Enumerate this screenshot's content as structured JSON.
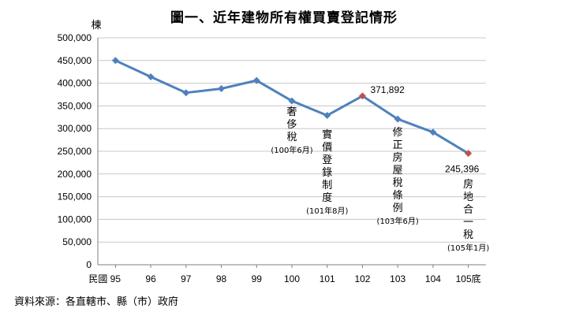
{
  "chart_data": {
    "type": "line",
    "title": "圖一、近年建物所有權買賣登記情形",
    "ylabel": "棟",
    "xlabel_prefix": "民國",
    "ylim": [
      0,
      500000
    ],
    "ytick_values": [
      0,
      50000,
      100000,
      150000,
      200000,
      250000,
      300000,
      350000,
      400000,
      450000,
      500000
    ],
    "ytick_labels": [
      "0",
      "50,000",
      "100,000",
      "150,000",
      "200,000",
      "250,000",
      "300,000",
      "350,000",
      "400,000",
      "450,000",
      "500,000"
    ],
    "categories": [
      "95",
      "96",
      "97",
      "98",
      "99",
      "100",
      "101",
      "102",
      "103",
      "104",
      "105底"
    ],
    "values": [
      450000,
      414000,
      379000,
      388000,
      406000,
      361000,
      329000,
      371892,
      321000,
      292000,
      245396
    ],
    "line_color": "#4F81BD",
    "highlight_color": "#C0504D",
    "highlight_indices": [
      7,
      10
    ],
    "data_labels": [
      {
        "index": 7,
        "text": "371,892"
      },
      {
        "index": 10,
        "text": "245,396"
      }
    ],
    "annotations": [
      {
        "index": 5,
        "text": "奢侈稅",
        "date": "(100年6月)"
      },
      {
        "index": 6,
        "text": "實價登錄制度",
        "date": "(101年8月)"
      },
      {
        "index": 8,
        "text": "修正房屋稅條例",
        "date": "(103年6月)"
      },
      {
        "index": 10,
        "text": "房地合一稅",
        "date": "(105年1月)"
      }
    ],
    "grid": true
  },
  "source_note": "資料來源：各直轄市、縣（市）政府"
}
